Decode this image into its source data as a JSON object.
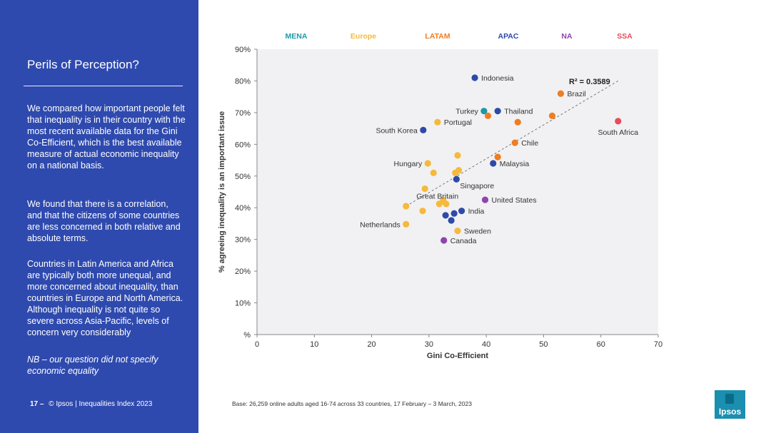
{
  "sidebar": {
    "title": "Perils of Perception?",
    "para1": "We compared how important people felt that inequality is in their country with the most recent available data for the Gini Co-Efficient, which is the best available measure of actual economic inequality on a national basis.",
    "para2": "We found that there is a correlation, and that the citizens of some countries are less concerned in both relative and absolute terms.",
    "para3": "Countries in Latin America and Africa are typically both more unequal, and more concerned about inequality, than countries in Europe and North America. Although inequality is not quite so severe across Asia-Pacific, levels of concern very considerably",
    "para4": "NB – our question did not specify economic equality"
  },
  "footer": {
    "page": "17 –",
    "copyright": "© Ipsos | Inequalities Index 2023",
    "base": "Base: 26,259 online adults aged 16-74 across 33 countries, 17 February – 3 March, 2023"
  },
  "logo": {
    "text": "Ipsos",
    "color": "#1a8fb0"
  },
  "chart_data": {
    "type": "scatter",
    "xlabel": "Gini Co-Efficient",
    "ylabel": "% agreeing inequality is an important issue",
    "xlim": [
      0,
      70
    ],
    "ylim": [
      0,
      90
    ],
    "x_ticks": [
      0,
      10,
      20,
      30,
      40,
      50,
      60,
      70
    ],
    "y_ticks": [
      0,
      10,
      20,
      30,
      40,
      50,
      60,
      70,
      80,
      90
    ],
    "y_tick_labels": [
      "%",
      "10%",
      "20%",
      "30%",
      "40%",
      "50%",
      "60%",
      "70%",
      "80%",
      "90%"
    ],
    "annotation": "R² = 0.3589",
    "trendline": {
      "x0": 26,
      "y0": 40.5,
      "x1": 63,
      "y1": 80
    },
    "legend": [
      {
        "name": "MENA",
        "color": "#1a9aa5"
      },
      {
        "name": "Europe",
        "color": "#f6b93b"
      },
      {
        "name": "LATAM",
        "color": "#ef7d22"
      },
      {
        "name": "APAC",
        "color": "#2e4aa8"
      },
      {
        "name": "NA",
        "color": "#8e44ad"
      },
      {
        "name": "SSA",
        "color": "#e84c5a"
      }
    ],
    "points": [
      {
        "label": "Indonesia",
        "region": "APAC",
        "x": 38.0,
        "y": 81.0,
        "pos": "right"
      },
      {
        "label": "Brazil",
        "region": "LATAM",
        "x": 53.0,
        "y": 76.0,
        "pos": "right"
      },
      {
        "label": "Turkey",
        "region": "MENA",
        "x": 39.6,
        "y": 70.5,
        "pos": "left"
      },
      {
        "label": "Thailand",
        "region": "APAC",
        "x": 42.0,
        "y": 70.5,
        "pos": "right"
      },
      {
        "label": "",
        "region": "LATAM",
        "x": 40.3,
        "y": 69.0,
        "pos": "none"
      },
      {
        "label": "",
        "region": "LATAM",
        "x": 51.5,
        "y": 69.0,
        "pos": "none"
      },
      {
        "label": "",
        "region": "LATAM",
        "x": 45.5,
        "y": 67.0,
        "pos": "none"
      },
      {
        "label": "South Africa",
        "region": "SSA",
        "x": 63.0,
        "y": 67.3,
        "pos": "below"
      },
      {
        "label": "Portugal",
        "region": "Europe",
        "x": 31.5,
        "y": 67.0,
        "pos": "right"
      },
      {
        "label": "South Korea",
        "region": "APAC",
        "x": 29.0,
        "y": 64.5,
        "pos": "left"
      },
      {
        "label": "Chile",
        "region": "LATAM",
        "x": 45.0,
        "y": 60.5,
        "pos": "right"
      },
      {
        "label": "",
        "region": "Europe",
        "x": 35.0,
        "y": 56.5,
        "pos": "none"
      },
      {
        "label": "",
        "region": "LATAM",
        "x": 42.0,
        "y": 56.0,
        "pos": "none"
      },
      {
        "label": "Malaysia",
        "region": "APAC",
        "x": 41.2,
        "y": 54.0,
        "pos": "right"
      },
      {
        "label": "Hungary",
        "region": "Europe",
        "x": 29.8,
        "y": 54.0,
        "pos": "left"
      },
      {
        "label": "",
        "region": "Europe",
        "x": 35.2,
        "y": 51.8,
        "pos": "none"
      },
      {
        "label": "",
        "region": "Europe",
        "x": 34.6,
        "y": 51.0,
        "pos": "none"
      },
      {
        "label": "",
        "region": "Europe",
        "x": 30.8,
        "y": 51.0,
        "pos": "none"
      },
      {
        "label": "Singapore",
        "region": "APAC",
        "x": 34.8,
        "y": 49.0,
        "pos": "below"
      },
      {
        "label": "Great Britain",
        "region": "Europe",
        "x": 29.3,
        "y": 46.0,
        "pos": "belowright"
      },
      {
        "label": "United States",
        "region": "NA",
        "x": 39.8,
        "y": 42.5,
        "pos": "right"
      },
      {
        "label": "",
        "region": "Europe",
        "x": 32.5,
        "y": 42.3,
        "pos": "none"
      },
      {
        "label": "",
        "region": "Europe",
        "x": 31.8,
        "y": 41.2,
        "pos": "none"
      },
      {
        "label": "",
        "region": "Europe",
        "x": 33.0,
        "y": 41.2,
        "pos": "none"
      },
      {
        "label": "",
        "region": "Europe",
        "x": 26.0,
        "y": 40.5,
        "pos": "none"
      },
      {
        "label": "India",
        "region": "APAC",
        "x": 35.7,
        "y": 39.0,
        "pos": "right"
      },
      {
        "label": "",
        "region": "Europe",
        "x": 28.9,
        "y": 39.0,
        "pos": "none"
      },
      {
        "label": "",
        "region": "APAC",
        "x": 34.4,
        "y": 38.2,
        "pos": "none"
      },
      {
        "label": "",
        "region": "APAC",
        "x": 32.9,
        "y": 37.6,
        "pos": "none"
      },
      {
        "label": "",
        "region": "APAC",
        "x": 33.9,
        "y": 36.0,
        "pos": "none"
      },
      {
        "label": "Netherlands",
        "region": "Europe",
        "x": 26.0,
        "y": 34.8,
        "pos": "left"
      },
      {
        "label": "Sweden",
        "region": "Europe",
        "x": 35.0,
        "y": 32.7,
        "pos": "right"
      },
      {
        "label": "Canada",
        "region": "NA",
        "x": 32.6,
        "y": 29.7,
        "pos": "right"
      }
    ]
  }
}
